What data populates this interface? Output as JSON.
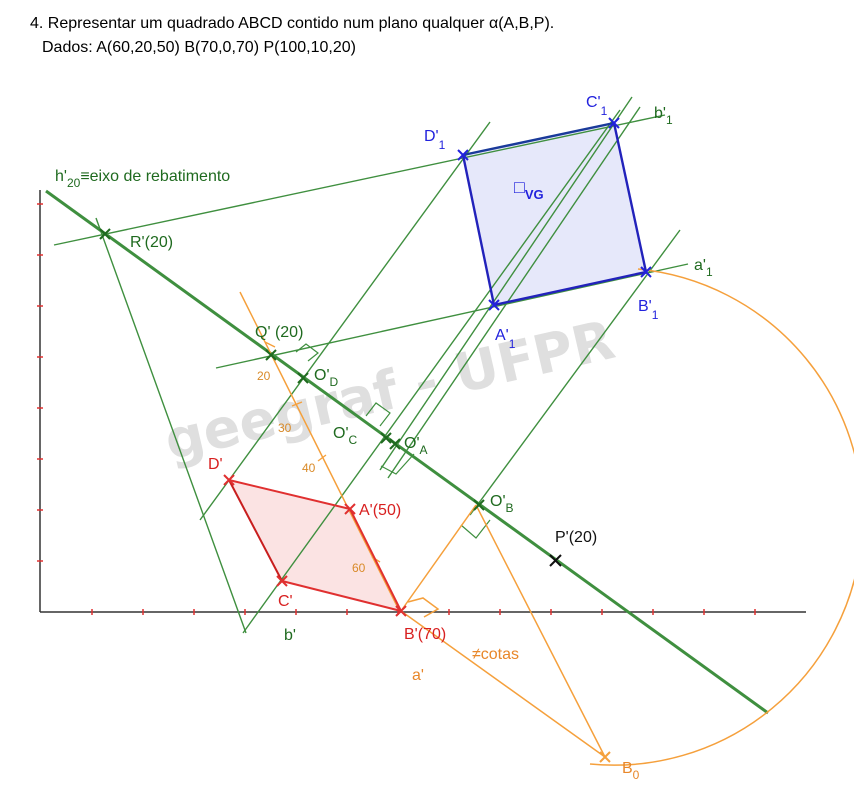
{
  "statement": {
    "line1": "4. Representar um quadrado ABCD contido num plano qualquer α(A,B,P).",
    "line2": "Dados: A(60,20,50)  B(70,0,70)  P(100,10,20)"
  },
  "watermark": "geegraf - UFPR",
  "labels": {
    "h20": "h'",
    "h20_sub": "20",
    "h20_rest": "≡eixo de rebatimento",
    "R": "R'(20)",
    "Q": "Q' (20)",
    "OD": "O'",
    "OD_sub": "D",
    "OC": "O'",
    "OC_sub": "C",
    "OA": "O'",
    "OA_sub": "A",
    "OB": "O'",
    "OB_sub": "B",
    "P": "P'(20)",
    "D": "D'",
    "A": "A'(50)",
    "C": "C'",
    "B": "B'(70)",
    "b": "b'",
    "a": "a'",
    "cotas": "≠cotas",
    "B0": "B",
    "B0_sub": "0",
    "A1": "A'",
    "A1_sub": "1",
    "B1": "B'",
    "B1_sub": "1",
    "C1": "C'",
    "C1_sub": "1",
    "D1": "D'",
    "D1_sub": "1",
    "a1": "a'",
    "a1_sub": "1",
    "b1": "b'",
    "b1_sub": "1",
    "VG": "□",
    "VG_sub": "VG"
  },
  "scale_marks": [
    "20",
    "30",
    "40",
    "60"
  ],
  "colors": {
    "green": "#3f8f3f",
    "dark_green": "#1f6a1f",
    "orange": "#f5a03c",
    "red": "#e03030",
    "blue": "#2222dd",
    "pink_fill": "#fbe3e3",
    "blue_fill": "#e6e8fa"
  }
}
